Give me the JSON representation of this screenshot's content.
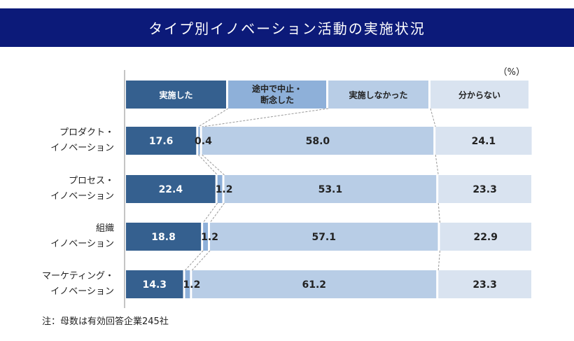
{
  "header": {
    "title": "タイプ別イノベーション活動の実施状況"
  },
  "unit_label": "（%）",
  "note": "注：母数は有効回答企業245社",
  "colors": {
    "header_bg": "#0c1a79",
    "implemented": "#35608f",
    "suspended": "#8eb0d9",
    "not_implemented": "#b8cde6",
    "unknown": "#d9e3f0"
  },
  "chart_data": {
    "type": "bar",
    "orientation": "horizontal",
    "stacked": true,
    "ylim": [
      0,
      100
    ],
    "categories": [
      [
        "プロダクト・",
        "イノベーション"
      ],
      [
        "プロセス・",
        "イノベーション"
      ],
      [
        "組織",
        "イノベーション"
      ],
      [
        "マーケティング・",
        "イノベーション"
      ]
    ],
    "series": [
      {
        "name": "実施した",
        "label_lines": [
          "実施した"
        ],
        "color": "#35608f",
        "values": [
          17.6,
          22.4,
          18.8,
          14.3
        ]
      },
      {
        "name": "途中で中止・断念した",
        "label_lines": [
          "途中で中止・",
          "断念した"
        ],
        "color": "#8eb0d9",
        "values": [
          0.4,
          1.2,
          1.2,
          1.2
        ]
      },
      {
        "name": "実施しなかった",
        "label_lines": [
          "実施しなかった"
        ],
        "color": "#b8cde6",
        "values": [
          58.0,
          53.1,
          57.1,
          61.2
        ]
      },
      {
        "name": "分からない",
        "label_lines": [
          "分からない"
        ],
        "color": "#d9e3f0",
        "values": [
          24.1,
          23.3,
          22.9,
          23.3
        ]
      }
    ],
    "value_labels": [
      [
        "17.6",
        "0.4",
        "58.0",
        "24.1"
      ],
      [
        "22.4",
        "1.2",
        "53.1",
        "23.3"
      ],
      [
        "18.8",
        "1.2",
        "57.1",
        "22.9"
      ],
      [
        "14.3",
        "1.2",
        "61.2",
        "23.3"
      ]
    ],
    "legend": "top",
    "grid": false
  }
}
